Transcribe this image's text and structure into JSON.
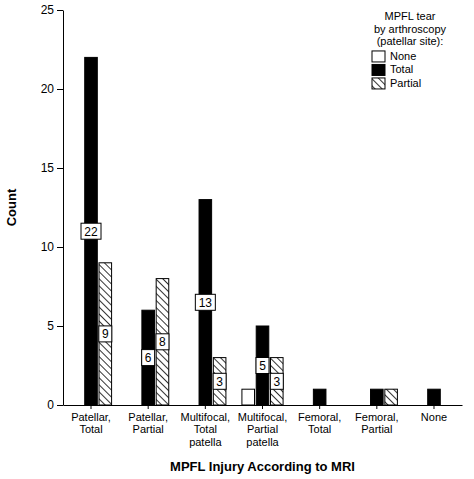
{
  "chart_data": {
    "type": "bar",
    "x_label": "MPFL Injury According to MRI",
    "y_label": "Count",
    "legend_title": [
      "MPFL tear",
      "by arthroscopy",
      "(patellar site):"
    ],
    "legend": "upper right",
    "grid": false,
    "data_labels": true,
    "categories": [
      "Patellar, Total",
      "Patellar, Partial",
      "Multifocal, Total patella",
      "Multifocal, Partial patella",
      "Femoral, Total",
      "Femoral, Partial",
      "None"
    ],
    "ylim": [
      0,
      25
    ],
    "yticks": [
      0,
      5,
      10,
      15,
      20,
      25
    ],
    "series": [
      {
        "name": "None",
        "color": "#ffffff",
        "marker": "solid",
        "values": [
          0,
          0,
          0,
          1,
          0,
          0,
          0
        ],
        "value_labels": [
          null,
          null,
          null,
          null,
          null,
          null,
          null
        ]
      },
      {
        "name": "Total",
        "color": "#000000",
        "marker": "solid",
        "values": [
          22,
          6,
          13,
          5,
          1,
          1,
          1
        ],
        "value_labels": [
          "22",
          "6",
          "13",
          "5",
          null,
          null,
          null
        ]
      },
      {
        "name": "Partial",
        "color": "#000000",
        "marker": "hatch",
        "values": [
          9,
          8,
          3,
          3,
          0,
          1,
          0
        ],
        "value_labels": [
          "9",
          "8",
          "3",
          "3",
          null,
          null,
          null
        ]
      }
    ]
  }
}
